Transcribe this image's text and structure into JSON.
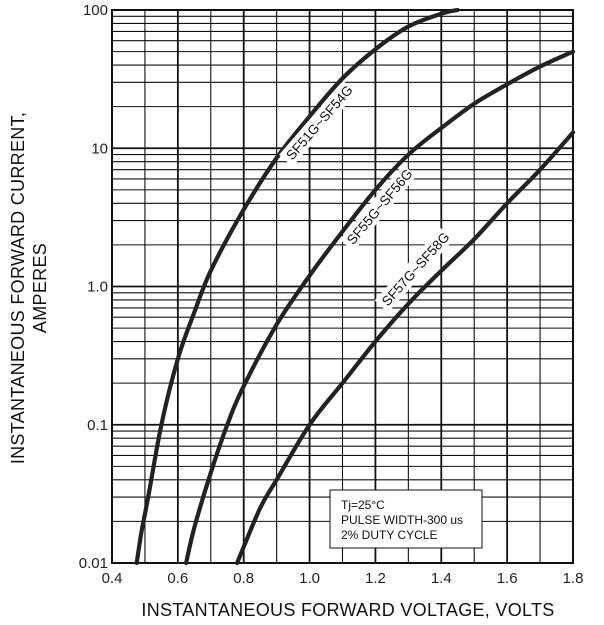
{
  "chart_data": {
    "type": "line",
    "xlabel": "INSTANTANEOUS FORWARD VOLTAGE, VOLTS",
    "ylabel_lines": [
      "INSTANTANEOUS FORWARD CURRENT,",
      "AMPERES"
    ],
    "x_scale": "linear",
    "y_scale": "log",
    "xlim": [
      0.4,
      1.8
    ],
    "ylim": [
      0.01,
      100
    ],
    "x_ticks": [
      0.4,
      0.6,
      0.8,
      1.0,
      1.2,
      1.4,
      1.6,
      1.8
    ],
    "x_tick_labels": [
      "0.4",
      "0.6",
      "0.8",
      "1.0",
      "1.2",
      "1.4",
      "1.6",
      "1.8"
    ],
    "y_ticks": [
      0.01,
      0.1,
      1,
      10,
      100
    ],
    "y_tick_labels": [
      "0.01",
      "0.1",
      "1.0",
      "10",
      "100"
    ],
    "grid": true,
    "series": [
      {
        "name": "SF51G~SF54G",
        "x": [
          0.475,
          0.49,
          0.51,
          0.55,
          0.6,
          0.65,
          0.7,
          0.8,
          0.9,
          1.0,
          1.1,
          1.2,
          1.3,
          1.4,
          1.45
        ],
        "y": [
          0.01,
          0.017,
          0.03,
          0.1,
          0.3,
          0.65,
          1.3,
          3.6,
          8.5,
          17,
          32,
          52,
          76,
          94,
          100
        ]
      },
      {
        "name": "SF55G~SF56G",
        "x": [
          0.625,
          0.65,
          0.7,
          0.75,
          0.8,
          0.9,
          1.0,
          1.1,
          1.2,
          1.3,
          1.4,
          1.5,
          1.6,
          1.7,
          1.8
        ],
        "y": [
          0.01,
          0.018,
          0.045,
          0.1,
          0.19,
          0.53,
          1.2,
          2.5,
          5,
          9,
          14,
          21,
          29,
          39,
          50
        ]
      },
      {
        "name": "SF57G~SF58G",
        "x": [
          0.78,
          0.85,
          0.9,
          1.0,
          1.1,
          1.2,
          1.3,
          1.4,
          1.5,
          1.6,
          1.7,
          1.8
        ],
        "y": [
          0.01,
          0.025,
          0.04,
          0.1,
          0.2,
          0.4,
          0.75,
          1.3,
          2.2,
          4,
          7,
          13
        ]
      }
    ],
    "annotation_lines": [
      "Tj=25°C",
      "PULSE WIDTH-300 us",
      "2% DUTY CYCLE"
    ]
  }
}
